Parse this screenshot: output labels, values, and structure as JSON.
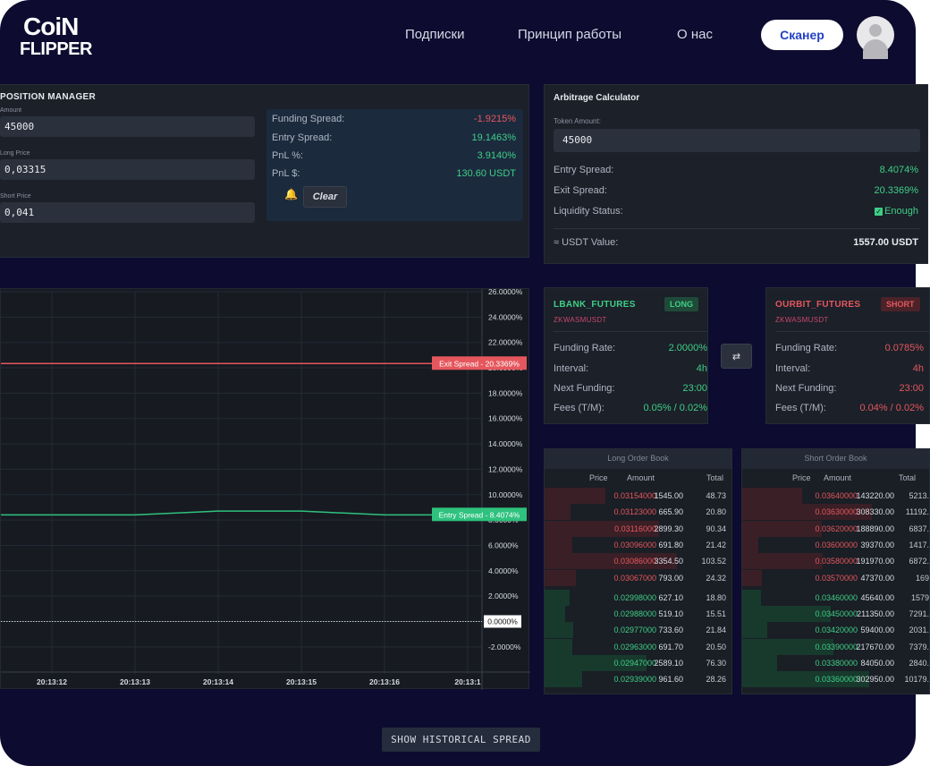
{
  "header": {
    "logo_line1": "CoiN",
    "logo_line2": "FLIPPER",
    "nav": [
      "Подписки",
      "Принцип работы",
      "О нас"
    ],
    "scanner_button": "Сканер"
  },
  "position_manager": {
    "title": "POSITION MANAGER",
    "amount_label": "Amount",
    "amount": "45000",
    "long_price_label": "Long Price",
    "long_price": "0,03315",
    "short_price_label": "Short Price",
    "short_price": "0,041",
    "stats": [
      {
        "label": "Funding Spread:",
        "value": "-1.9215%",
        "color": "red"
      },
      {
        "label": "Entry Spread:",
        "value": "19.1463%",
        "color": "green"
      },
      {
        "label": "PnL %:",
        "value": "3.9140%",
        "color": "green"
      },
      {
        "label": "PnL $:",
        "value": "130.60 USDT",
        "color": "green"
      }
    ],
    "clear_label": "Clear",
    "bell_icon": "bell-icon"
  },
  "arbitrage": {
    "title": "Arbitrage Calculator",
    "token_amount_label": "Token Amount:",
    "token_amount": "45000",
    "entry_spread_label": "Entry Spread:",
    "entry_spread": "8.4074%",
    "exit_spread_label": "Exit Spread:",
    "exit_spread": "20.3369%",
    "liquidity_label": "Liquidity Status:",
    "liquidity": "Enough",
    "usdt_label": "≈ USDT Value:",
    "usdt_value": "1557.00 USDT"
  },
  "chart_data": {
    "type": "line",
    "x": [
      "20:13:12",
      "20:13:13",
      "20:13:14",
      "20:13:15",
      "20:13:16",
      "20:13:1"
    ],
    "ylim": [
      -3,
      26
    ],
    "y_ticks": [
      "26.0000%",
      "24.0000%",
      "22.0000%",
      "20.0000%",
      "18.0000%",
      "16.0000%",
      "14.0000%",
      "12.0000%",
      "10.0000%",
      "8.0000%",
      "6.0000%",
      "4.0000%",
      "2.0000%",
      "0.0000%",
      "-2.0000%"
    ],
    "series": [
      {
        "name": "Exit Spread",
        "values": [
          20.3369,
          20.3369,
          20.3369,
          20.3369,
          20.3369,
          20.3369
        ],
        "color": "#e5575d",
        "label": "Exit Spread - 20.3369%"
      },
      {
        "name": "Entry Spread",
        "values": [
          8.4074,
          8.4074,
          8.7,
          8.7,
          8.4074,
          8.4074
        ],
        "color": "#2ec27e",
        "label": "Entry Spread - 8.4074%"
      }
    ],
    "zero_label": "0.0000%"
  },
  "long_exchange": {
    "name": "LBANK_FUTURES",
    "badge": "LONG",
    "pair": "ZKWASMUSDT",
    "rows": [
      {
        "label": "Funding Rate:",
        "value": "2.0000%",
        "color": "green"
      },
      {
        "label": "Interval:",
        "value": "4h",
        "color": "green"
      },
      {
        "label": "Next Funding:",
        "value": "23:00",
        "color": "green"
      },
      {
        "label": "Fees (T/M):",
        "value": "0.05% / 0.02%",
        "color": "green"
      }
    ]
  },
  "short_exchange": {
    "name": "OURBIT_FUTURES",
    "badge": "SHORT",
    "pair": "ZKWASMUSDT",
    "rows": [
      {
        "label": "Funding Rate:",
        "value": "0.0785%",
        "color": "red"
      },
      {
        "label": "Interval:",
        "value": "4h",
        "color": "red"
      },
      {
        "label": "Next Funding:",
        "value": "23:00",
        "color": "red"
      },
      {
        "label": "Fees (T/M):",
        "value": "0.04% / 0.02%",
        "color": "red"
      }
    ]
  },
  "swap_icon": "⇄",
  "long_book": {
    "title": "Long Order Book",
    "headers": [
      "Price",
      "Amount",
      "Total"
    ],
    "asks": [
      [
        "0.03154000",
        "1545.00",
        "48.73"
      ],
      [
        "0.03123000",
        "665.90",
        "20.80"
      ],
      [
        "0.03116000",
        "2899.30",
        "90.34"
      ],
      [
        "0.03096000",
        "691.80",
        "21.42"
      ],
      [
        "0.03086000",
        "3354.50",
        "103.52"
      ],
      [
        "0.03067000",
        "793.00",
        "24.32"
      ]
    ],
    "bids": [
      [
        "0.02998000",
        "627.10",
        "18.80"
      ],
      [
        "0.02988000",
        "519.10",
        "15.51"
      ],
      [
        "0.02977000",
        "733.60",
        "21.84"
      ],
      [
        "0.02963000",
        "691.70",
        "20.50"
      ],
      [
        "0.02947000",
        "2589.10",
        "76.30"
      ],
      [
        "0.02939000",
        "961.60",
        "28.26"
      ]
    ]
  },
  "short_book": {
    "title": "Short Order Book",
    "headers": [
      "Price",
      "Amount",
      "Total"
    ],
    "asks": [
      [
        "0.03640000",
        "143220.00",
        "5213."
      ],
      [
        "0.03630000",
        "308330.00",
        "11192."
      ],
      [
        "0.03620000",
        "188890.00",
        "6837."
      ],
      [
        "0.03600000",
        "39370.00",
        "1417."
      ],
      [
        "0.03580000",
        "191970.00",
        "6872."
      ],
      [
        "0.03570000",
        "47370.00",
        "169"
      ]
    ],
    "bids": [
      [
        "0.03460000",
        "45640.00",
        "1579"
      ],
      [
        "0.03450000",
        "211350.00",
        "7291."
      ],
      [
        "0.03420000",
        "59400.00",
        "2031."
      ],
      [
        "0.03390000",
        "217670.00",
        "7379."
      ],
      [
        "0.03380000",
        "84050.00",
        "2840."
      ],
      [
        "0.03360000",
        "302950.00",
        "10179."
      ]
    ]
  },
  "historical_button": "SHOW HISTORICAL SPREAD"
}
